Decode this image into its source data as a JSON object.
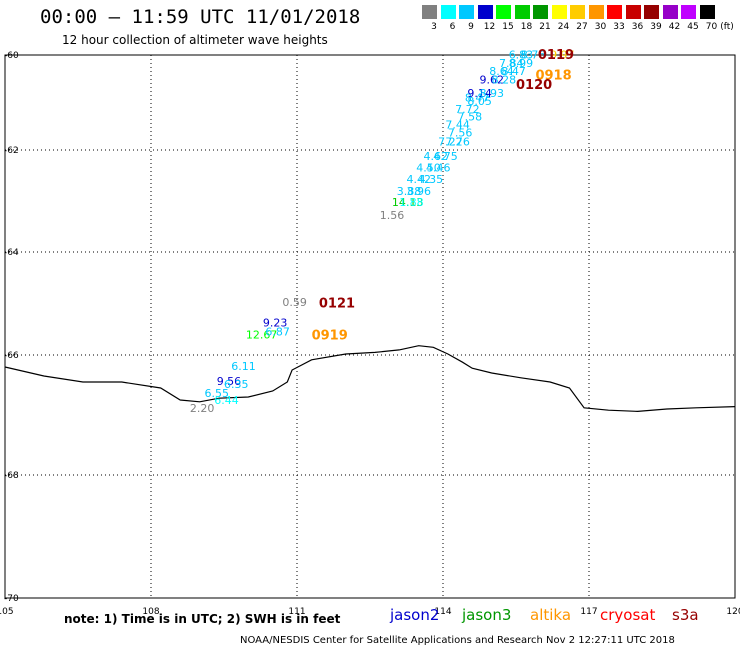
{
  "title": "00:00 – 11:59 UTC 11/01/2018",
  "subtitle": "12 hour collection of altimeter wave heights",
  "colorbar": {
    "unit_label": "(ft)",
    "colors": [
      "#808080",
      "#00ffff",
      "#00c8ff",
      "#0000cd",
      "#00ff00",
      "#00cc00",
      "#009600",
      "#ffff00",
      "#ffcc00",
      "#ff9600",
      "#ff0000",
      "#c80000",
      "#960000",
      "#9600c8",
      "#c000ff",
      "#000000"
    ],
    "ticks": [
      "3",
      "6",
      "9",
      "12",
      "15",
      "18",
      "21",
      "24",
      "27",
      "30",
      "33",
      "36",
      "39",
      "42",
      "45",
      "70"
    ]
  },
  "map": {
    "lon_range": [
      105,
      120
    ],
    "lat_range": [
      -70,
      -60
    ],
    "lon_ticks": [
      "105",
      "108",
      "111",
      "114",
      "117",
      "120"
    ],
    "lat_ticks": [
      "-60",
      "-62",
      "-64",
      "-66",
      "-68",
      "-70"
    ],
    "coastline": [
      [
        105,
        -66.2
      ],
      [
        105.8,
        -66.35
      ],
      [
        106.6,
        -66.45
      ],
      [
        107.4,
        -66.45
      ],
      [
        108.2,
        -66.55
      ],
      [
        108.6,
        -66.75
      ],
      [
        109.0,
        -66.78
      ],
      [
        109.4,
        -66.72
      ],
      [
        110.0,
        -66.7
      ],
      [
        110.5,
        -66.6
      ],
      [
        110.8,
        -66.45
      ],
      [
        110.9,
        -66.25
      ],
      [
        111.3,
        -66.08
      ],
      [
        112.0,
        -65.98
      ],
      [
        112.6,
        -65.95
      ],
      [
        113.1,
        -65.9
      ],
      [
        113.5,
        -65.82
      ],
      [
        113.8,
        -65.85
      ],
      [
        114.1,
        -65.98
      ],
      [
        114.4,
        -66.12
      ],
      [
        114.6,
        -66.22
      ],
      [
        115.0,
        -66.3
      ],
      [
        115.6,
        -66.38
      ],
      [
        116.2,
        -66.45
      ],
      [
        116.6,
        -66.55
      ],
      [
        116.9,
        -66.88
      ],
      [
        117.4,
        -66.92
      ],
      [
        118.0,
        -66.94
      ],
      [
        118.6,
        -66.9
      ],
      [
        119.2,
        -66.88
      ],
      [
        120,
        -66.86
      ]
    ],
    "observations": [
      {
        "label": "1.56",
        "color": "#808080",
        "lon": 112.7,
        "lat": -63.35
      },
      {
        "label": "14.13",
        "color": "#00cc00",
        "lon": 112.95,
        "lat": -63.1
      },
      {
        "label": "1.88",
        "color": "#00ffff",
        "lon": 113.1,
        "lat": -63.1
      },
      {
        "label": "3.88",
        "color": "#00c8ff",
        "lon": 113.05,
        "lat": -62.88
      },
      {
        "label": "3.96",
        "color": "#00c8ff",
        "lon": 113.25,
        "lat": -62.88
      },
      {
        "label": "4.42",
        "color": "#00c8ff",
        "lon": 113.25,
        "lat": -62.65
      },
      {
        "label": "4.35",
        "color": "#00c8ff",
        "lon": 113.5,
        "lat": -62.65
      },
      {
        "label": "4.50",
        "color": "#00c8ff",
        "lon": 113.45,
        "lat": -62.42
      },
      {
        "label": "4.46",
        "color": "#00c8ff",
        "lon": 113.65,
        "lat": -62.42
      },
      {
        "label": "4.62",
        "color": "#00c8ff",
        "lon": 113.6,
        "lat": -62.2
      },
      {
        "label": "4.75",
        "color": "#00c8ff",
        "lon": 113.8,
        "lat": -62.2
      },
      {
        "label": "7.22",
        "color": "#00c8ff",
        "lon": 113.9,
        "lat": -61.9
      },
      {
        "label": "7.76",
        "color": "#00c8ff",
        "lon": 114.05,
        "lat": -61.9
      },
      {
        "label": "7.56",
        "color": "#00c8ff",
        "lon": 114.1,
        "lat": -61.72
      },
      {
        "label": "7.44",
        "color": "#00c8ff",
        "lon": 114.05,
        "lat": -61.55
      },
      {
        "label": "7.58",
        "color": "#00c8ff",
        "lon": 114.3,
        "lat": -61.38
      },
      {
        "label": "7.72",
        "color": "#00c8ff",
        "lon": 114.25,
        "lat": -61.22
      },
      {
        "label": "8.05",
        "color": "#00c8ff",
        "lon": 114.5,
        "lat": -61.05
      },
      {
        "label": "8.47",
        "color": "#00c8ff",
        "lon": 114.45,
        "lat": -60.98
      },
      {
        "label": "9.14",
        "color": "#0000cd",
        "lon": 114.5,
        "lat": -60.88
      },
      {
        "label": "8.93",
        "color": "#00c8ff",
        "lon": 114.75,
        "lat": -60.88
      },
      {
        "label": "9.62",
        "color": "#0000cd",
        "lon": 114.75,
        "lat": -60.6
      },
      {
        "label": "8.28",
        "color": "#00c8ff",
        "lon": 115.0,
        "lat": -60.6
      },
      {
        "label": "8.64",
        "color": "#00c8ff",
        "lon": 114.95,
        "lat": -60.42
      },
      {
        "label": "8.47",
        "color": "#00c8ff",
        "lon": 115.2,
        "lat": -60.42
      },
      {
        "label": "7.84",
        "color": "#00c8ff",
        "lon": 115.15,
        "lat": -60.25
      },
      {
        "label": "8.99",
        "color": "#00c8ff",
        "lon": 115.35,
        "lat": -60.25
      },
      {
        "label": "6.83",
        "color": "#00c8ff",
        "lon": 115.35,
        "lat": -60.07
      },
      {
        "label": "8.76",
        "color": "#00c8ff",
        "lon": 115.6,
        "lat": -60.07
      },
      {
        "label": "9.97",
        "color": "#ffcc00",
        "lon": 116.2,
        "lat": -60.07
      },
      {
        "label": "0.59",
        "color": "#808080",
        "lon": 110.7,
        "lat": -65.05
      },
      {
        "label": "9.23",
        "color": "#0000cd",
        "lon": 110.3,
        "lat": -65.45
      },
      {
        "label": "12.67",
        "color": "#00ff00",
        "lon": 109.95,
        "lat": -65.68
      },
      {
        "label": "6.87",
        "color": "#00c8ff",
        "lon": 110.35,
        "lat": -65.62
      },
      {
        "label": "6.11",
        "color": "#00c8ff",
        "lon": 109.65,
        "lat": -66.25
      },
      {
        "label": "9.56",
        "color": "#0000cd",
        "lon": 109.35,
        "lat": -66.5
      },
      {
        "label": "6.35",
        "color": "#00c8ff",
        "lon": 109.5,
        "lat": -66.55
      },
      {
        "label": "6.55",
        "color": "#00c8ff",
        "lon": 109.1,
        "lat": -66.7
      },
      {
        "label": "6.44",
        "color": "#00ffff",
        "lon": 109.3,
        "lat": -66.82
      },
      {
        "label": "2.20",
        "color": "#808080",
        "lon": 108.8,
        "lat": -66.95
      }
    ],
    "time_labels": [
      {
        "label": "0119",
        "color": "#960000",
        "lon": 115.95,
        "lat": -60.08
      },
      {
        "label": "0918",
        "color": "#ff9600",
        "lon": 115.9,
        "lat": -60.52
      },
      {
        "label": "0120",
        "color": "#960000",
        "lon": 115.5,
        "lat": -60.72
      },
      {
        "label": "0121",
        "color": "#960000",
        "lon": 111.45,
        "lat": -65.08
      },
      {
        "label": "0919",
        "color": "#ff9600",
        "lon": 111.3,
        "lat": -65.7
      }
    ]
  },
  "footer": {
    "note": "note: 1) Time is in UTC; 2) SWH is in feet",
    "satellites": [
      {
        "name": "jason2",
        "color": "#0000cd"
      },
      {
        "name": "jason3",
        "color": "#009600"
      },
      {
        "name": "altika",
        "color": "#ff9600"
      },
      {
        "name": "cryosat",
        "color": "#ff0000"
      },
      {
        "name": "s3a",
        "color": "#960000"
      }
    ],
    "credit": "NOAA/NESDIS Center for Satellite Applications and Research    Nov  2 12:27:11 UTC 2018"
  }
}
